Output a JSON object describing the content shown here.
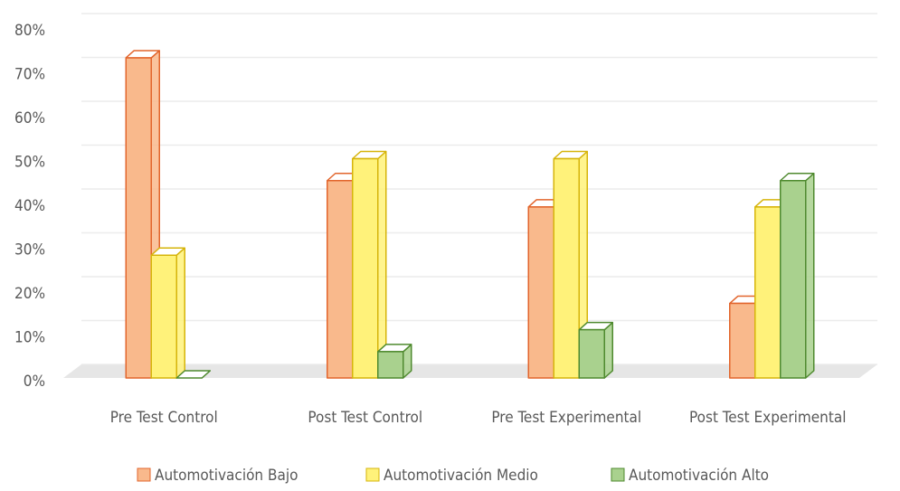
{
  "chart_data": {
    "type": "bar3d",
    "categories": [
      "Pre Test Control",
      "Post Test Control",
      "Pre Test Experimental",
      "Post Test Experimental"
    ],
    "series": [
      {
        "name": "Automotivación Bajo",
        "color": "#f9b98c",
        "edgecolor": "#e2652c",
        "values": [
          73,
          45,
          39,
          17
        ]
      },
      {
        "name": "Automotivación Medio",
        "color": "#fff27a",
        "edgecolor": "#d6b40a",
        "values": [
          28,
          50,
          50,
          39
        ]
      },
      {
        "name": "Automotivación Alto",
        "color": "#a9d18e",
        "edgecolor": "#4f8a2f",
        "values": [
          0,
          6,
          11,
          45
        ]
      }
    ],
    "ylim": [
      0,
      80
    ],
    "yticks": [
      {
        "value": 0,
        "label": "0%"
      },
      {
        "value": 10,
        "label": "10%"
      },
      {
        "value": 20,
        "label": "20%"
      },
      {
        "value": 30,
        "label": "30%"
      },
      {
        "value": 40,
        "label": "40%"
      },
      {
        "value": 50,
        "label": "50%"
      },
      {
        "value": 60,
        "label": "60%"
      },
      {
        "value": 70,
        "label": "70%"
      },
      {
        "value": 80,
        "label": "80%"
      }
    ],
    "grid": true,
    "legend": "bottom"
  }
}
